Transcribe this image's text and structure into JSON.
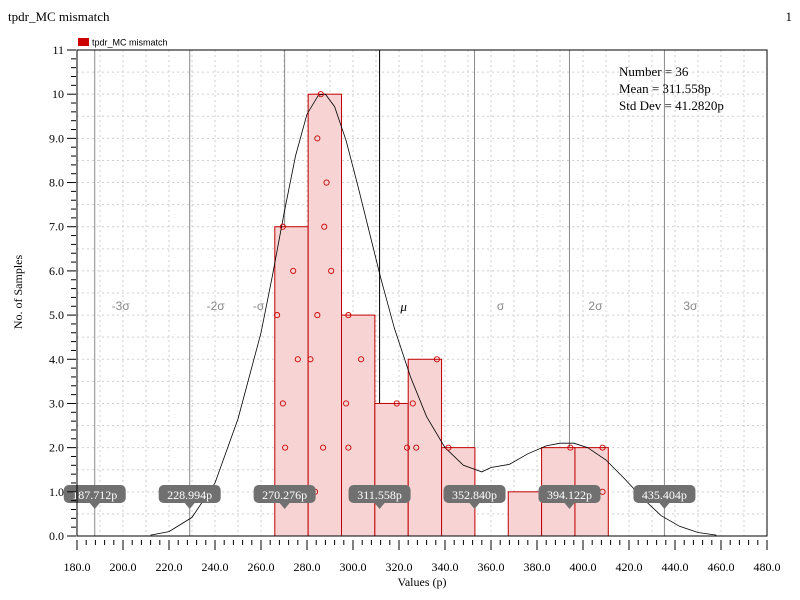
{
  "window": {
    "title": "tpdr_MC mismatch",
    "index": "1"
  },
  "colors": {
    "bar_fill": "#f7d3d3",
    "bar_stroke": "#c00000",
    "point": "#cc0000",
    "legend_swatch": "#cc0000",
    "curve": "#000000",
    "marker_bg": "#707070"
  },
  "stats": {
    "number": "Number = 36",
    "mean": "Mean = 311.558p",
    "std": "Std Dev = 41.2820p"
  },
  "chart_data": {
    "type": "bar",
    "title": "",
    "xlabel": "Values (p)",
    "ylabel": "No. of Samples",
    "xlim": [
      180,
      480
    ],
    "ylim": [
      0,
      11
    ],
    "x_ticks": [
      "180.0",
      "200.0",
      "220.0",
      "240.0",
      "260.0",
      "280.0",
      "300.0",
      "320.0",
      "340.0",
      "360.0",
      "380.0",
      "400.0",
      "420.0",
      "440.0",
      "460.0",
      "480.0"
    ],
    "y_ticks": [
      "0.0",
      "1.0",
      "2.0",
      "3.0",
      "4.0",
      "5.0",
      "6.0",
      "7.0",
      "8.0",
      "9.0",
      "10",
      "11"
    ],
    "grid": true,
    "legend": {
      "label": "tpdr_MC mismatch",
      "position": "top-left"
    },
    "bins": [
      {
        "x0": 266.0,
        "x1": 280.5,
        "count": 7
      },
      {
        "x0": 280.5,
        "x1": 295.0,
        "count": 10
      },
      {
        "x0": 295.0,
        "x1": 309.5,
        "count": 5
      },
      {
        "x0": 309.5,
        "x1": 324.0,
        "count": 3
      },
      {
        "x0": 324.0,
        "x1": 338.5,
        "count": 4
      },
      {
        "x0": 338.5,
        "x1": 353.0,
        "count": 2
      },
      {
        "x0": 367.5,
        "x1": 382.0,
        "count": 1
      },
      {
        "x0": 382.0,
        "x1": 396.5,
        "count": 2
      },
      {
        "x0": 396.5,
        "x1": 411.0,
        "count": 2
      }
    ],
    "points": [
      [
        269.5,
        7
      ],
      [
        269.5,
        3
      ],
      [
        270.5,
        2
      ],
      [
        267,
        5
      ],
      [
        274,
        6
      ],
      [
        276,
        4
      ],
      [
        286,
        10
      ],
      [
        284.5,
        9
      ],
      [
        288.5,
        8
      ],
      [
        287.5,
        7
      ],
      [
        290.5,
        6
      ],
      [
        284.5,
        5
      ],
      [
        281.5,
        4
      ],
      [
        287,
        2
      ],
      [
        283.5,
        1
      ],
      [
        298,
        5
      ],
      [
        303.5,
        4
      ],
      [
        297,
        3
      ],
      [
        298,
        2
      ],
      [
        319,
        3
      ],
      [
        323.5,
        2
      ],
      [
        326,
        3
      ],
      [
        336.5,
        4
      ],
      [
        327.5,
        2
      ],
      [
        341.5,
        2
      ],
      [
        384.5,
        1
      ],
      [
        394.5,
        2
      ],
      [
        408.5,
        2
      ],
      [
        408.5,
        1
      ]
    ],
    "mean": 311.558,
    "std_dev": 41.282,
    "sigma_lines": [
      187.712,
      228.994,
      270.276,
      311.558,
      352.84,
      394.122,
      435.404
    ],
    "sigma_labels": [
      {
        "x": 311.558,
        "text": "μ"
      },
      {
        "x": 187.712,
        "text": "-3σ"
      },
      {
        "x": 228.994,
        "text": "-2σ"
      },
      {
        "x": 270.276,
        "text": "-σ"
      },
      {
        "x": 352.84,
        "text": "σ"
      },
      {
        "x": 394.122,
        "text": "2σ"
      },
      {
        "x": 435.404,
        "text": "3σ"
      }
    ],
    "sigma_markers": [
      "187.712p",
      "228.994p",
      "270.276p",
      "311.558p",
      "352.840p",
      "394.122p",
      "435.404p"
    ],
    "density_curve": [
      [
        212,
        0.02
      ],
      [
        220,
        0.1
      ],
      [
        230,
        0.42
      ],
      [
        240,
        1.2
      ],
      [
        250,
        2.65
      ],
      [
        260,
        4.6
      ],
      [
        265,
        5.9
      ],
      [
        270,
        7.3
      ],
      [
        275,
        8.6
      ],
      [
        280,
        9.55
      ],
      [
        285,
        9.98
      ],
      [
        288,
        10.0
      ],
      [
        292,
        9.72
      ],
      [
        297,
        8.95
      ],
      [
        302,
        7.95
      ],
      [
        307,
        6.9
      ],
      [
        312,
        5.85
      ],
      [
        318,
        4.7
      ],
      [
        325,
        3.6
      ],
      [
        332,
        2.7
      ],
      [
        340,
        2.0
      ],
      [
        348,
        1.6
      ],
      [
        356,
        1.45
      ],
      [
        360,
        1.55
      ],
      [
        368,
        1.62
      ],
      [
        376,
        1.86
      ],
      [
        384,
        2.04
      ],
      [
        390,
        2.1
      ],
      [
        396,
        2.1
      ],
      [
        402,
        2.0
      ],
      [
        410,
        1.72
      ],
      [
        418,
        1.3
      ],
      [
        426,
        0.85
      ],
      [
        434,
        0.46
      ],
      [
        442,
        0.22
      ],
      [
        450,
        0.08
      ],
      [
        458,
        0.02
      ]
    ]
  }
}
